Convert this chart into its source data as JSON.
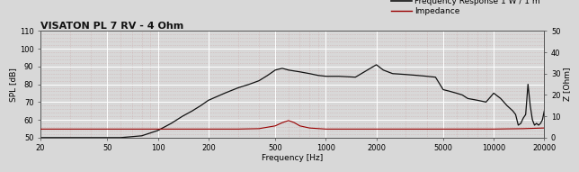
{
  "title": "VISATON PL 7 RV - 4 Ohm",
  "xlabel": "Frequency [Hz]",
  "ylabel_left": "SPL [dB]",
  "ylabel_right": "Z [Ohm]",
  "legend_fr": "Frequency Response 1 W / 1 m",
  "legend_imp": "Impedance",
  "spl_ylim": [
    50,
    110
  ],
  "imp_ylim": [
    0,
    50
  ],
  "freq_xlim": [
    20,
    20000
  ],
  "fig_facecolor": "#d8d8d8",
  "plot_facecolor": "#d8d8d8",
  "major_grid_color": "#ffffff",
  "minor_grid_color": "#c8a0a0",
  "fr_color": "#111111",
  "imp_color": "#990000",
  "title_fontsize": 8,
  "label_fontsize": 6.5,
  "tick_fontsize": 6,
  "legend_fontsize": 6.5,
  "spl_yticks": [
    50,
    60,
    70,
    80,
    90,
    100,
    110
  ],
  "imp_yticks": [
    0,
    10,
    20,
    30,
    40,
    50
  ],
  "xtick_labels": [
    "20",
    "50",
    "100",
    "200",
    "500",
    "1000",
    "2000",
    "5000",
    "10000",
    "20000"
  ],
  "xtick_vals": [
    20,
    50,
    100,
    200,
    500,
    1000,
    2000,
    5000,
    10000,
    20000
  ],
  "freq_response_freq": [
    20,
    40,
    60,
    80,
    100,
    120,
    140,
    160,
    180,
    200,
    250,
    300,
    350,
    400,
    450,
    500,
    550,
    600,
    700,
    800,
    900,
    1000,
    1200,
    1500,
    2000,
    2200,
    2500,
    3000,
    3500,
    4000,
    4500,
    5000,
    5500,
    6000,
    6500,
    7000,
    7500,
    8000,
    9000,
    10000,
    11000,
    12000,
    13000,
    13500,
    14000,
    14500,
    15000,
    15500,
    16000,
    16500,
    17000,
    17500,
    18000,
    18500,
    19000,
    19500,
    20000
  ],
  "freq_response_spl": [
    50,
    50,
    50,
    51,
    54,
    58,
    62,
    65,
    68,
    71,
    75,
    78,
    80,
    82,
    85,
    88,
    89,
    88,
    87,
    86,
    85,
    84.5,
    84.5,
    84,
    91,
    88,
    86,
    85.5,
    85,
    84.5,
    84,
    77,
    76,
    75,
    74,
    72,
    71.5,
    71,
    70,
    75,
    72,
    68,
    65,
    63,
    57,
    58,
    61,
    63,
    80,
    68,
    60,
    57,
    58,
    57,
    58,
    60,
    65
  ],
  "impedance_freq": [
    20,
    30,
    40,
    50,
    60,
    80,
    100,
    150,
    200,
    300,
    400,
    500,
    550,
    600,
    650,
    700,
    800,
    1000,
    1500,
    2000,
    3000,
    5000,
    7000,
    10000,
    15000,
    20000
  ],
  "impedance_ohm": [
    4,
    4,
    4,
    4,
    4,
    4,
    4,
    4,
    4,
    4,
    4.2,
    5.5,
    7,
    8,
    7,
    5.5,
    4.5,
    4,
    4,
    4,
    4,
    4,
    4,
    4,
    4.2,
    4.5
  ]
}
